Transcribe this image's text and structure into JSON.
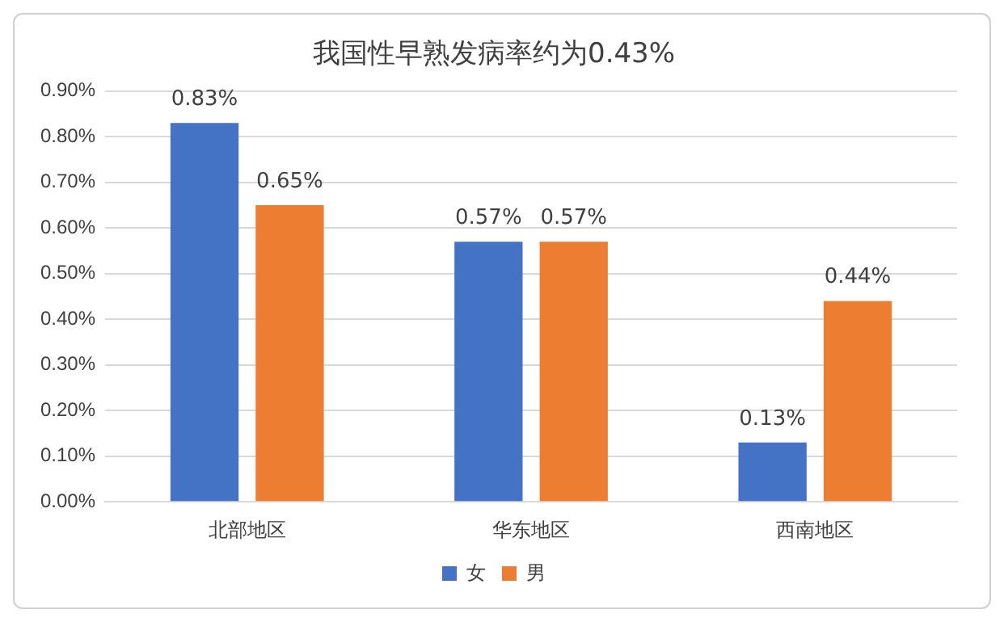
{
  "chart_data": {
    "type": "bar",
    "title": "我国性早熟发病率约为0.43%",
    "categories": [
      "北部地区",
      "华东地区",
      "西南地区"
    ],
    "series": [
      {
        "name": "女",
        "color": "#4472c4",
        "values": [
          0.83,
          0.57,
          0.13
        ],
        "value_labels": [
          "0.83%",
          "0.57%",
          "0.13%"
        ]
      },
      {
        "name": "男",
        "color": "#ed7d31",
        "values": [
          0.65,
          0.57,
          0.44
        ],
        "value_labels": [
          "0.65%",
          "0.57%",
          "0.44%"
        ]
      }
    ],
    "ylim": [
      0,
      0.9
    ],
    "yticks": [
      {
        "value": 0,
        "label": "0.00%"
      },
      {
        "value": 0.1,
        "label": "0.10%"
      },
      {
        "value": 0.2,
        "label": "0.20%"
      },
      {
        "value": 0.3,
        "label": "0.30%"
      },
      {
        "value": 0.4,
        "label": "0.40%"
      },
      {
        "value": 0.5,
        "label": "0.50%"
      },
      {
        "value": 0.6,
        "label": "0.60%"
      },
      {
        "value": 0.7,
        "label": "0.70%"
      },
      {
        "value": 0.8,
        "label": "0.80%"
      },
      {
        "value": 0.9,
        "label": "0.90%"
      }
    ],
    "grid": "y",
    "legend": "bottom"
  }
}
